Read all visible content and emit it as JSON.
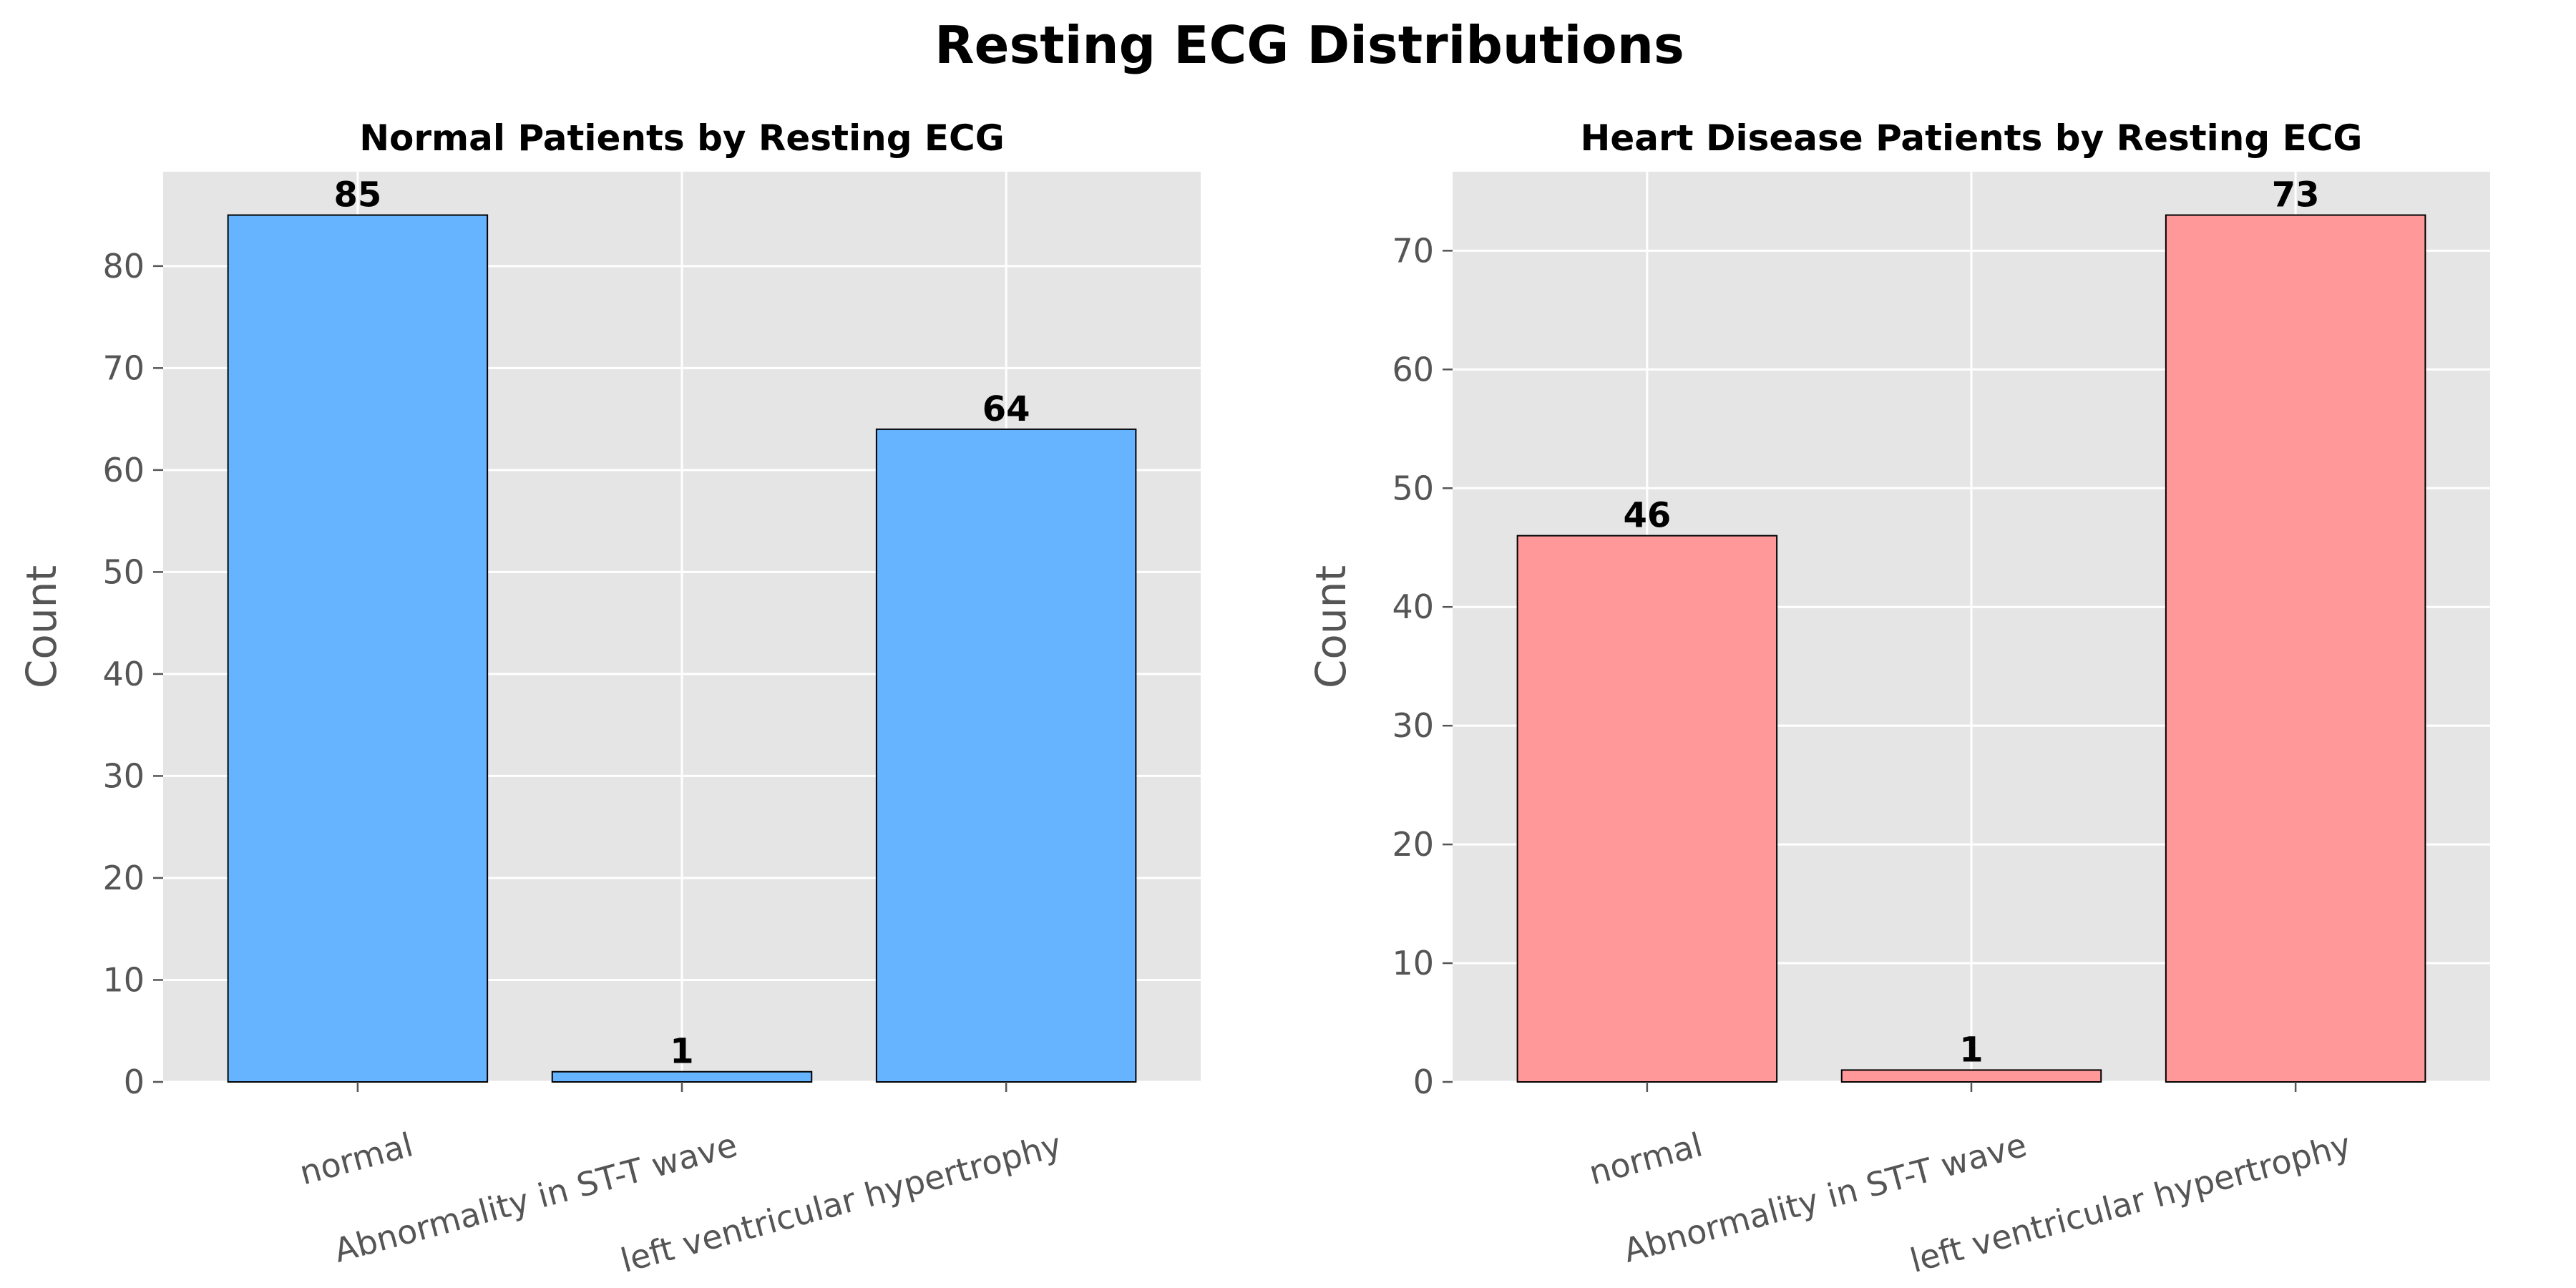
{
  "figure": {
    "title": "Resting ECG Distributions",
    "background": "#ffffff",
    "axes_facecolor": "#e5e5e5",
    "grid_color": "#ffffff",
    "tick_color": "#555555"
  },
  "chart_data": [
    {
      "type": "bar",
      "title": "Normal Patients by Resting ECG",
      "xlabel": "",
      "ylabel": "Count",
      "categories": [
        "normal",
        "Abnormality in ST-T wave",
        "left ventricular hypertrophy"
      ],
      "values": [
        85,
        1,
        64
      ],
      "ylim": [
        0,
        89.25
      ],
      "yticks": [
        0,
        10,
        20,
        30,
        40,
        50,
        60,
        70,
        80
      ],
      "color": "#66b3ff",
      "grid": true,
      "tick_rotation": 15
    },
    {
      "type": "bar",
      "title": "Heart Disease Patients by Resting ECG",
      "xlabel": "",
      "ylabel": "Count",
      "categories": [
        "normal",
        "Abnormality in ST-T wave",
        "left ventricular hypertrophy"
      ],
      "values": [
        46,
        1,
        73
      ],
      "ylim": [
        0,
        76.65
      ],
      "yticks": [
        0,
        10,
        20,
        30,
        40,
        50,
        60,
        70
      ],
      "color": "#ff9999",
      "grid": true,
      "tick_rotation": 15
    }
  ]
}
